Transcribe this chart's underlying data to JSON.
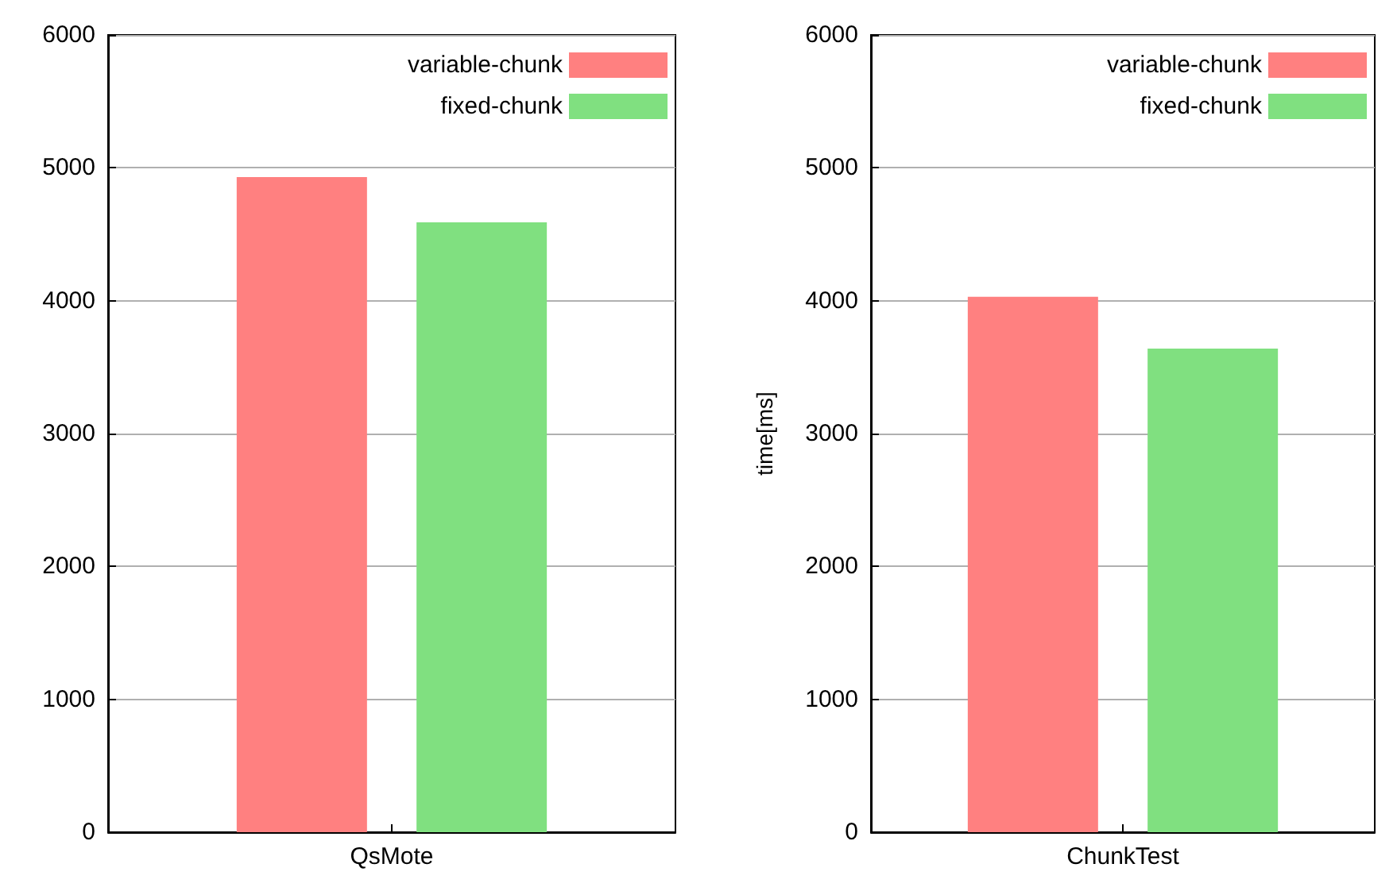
{
  "chart_data": [
    {
      "type": "bar",
      "categories": [
        "QsMote"
      ],
      "series": [
        {
          "name": "variable-chunk",
          "color": "#ff8080",
          "values": [
            4930
          ]
        },
        {
          "name": "fixed-chunk",
          "color": "#80e080",
          "values": [
            4590
          ]
        }
      ],
      "ylim": [
        0,
        6000
      ],
      "yticks": [
        0,
        1000,
        2000,
        3000,
        4000,
        5000,
        6000
      ],
      "grid": "y",
      "legend": "top right"
    },
    {
      "type": "bar",
      "categories": [
        "ChunkTest"
      ],
      "ylabel": "time[ms]",
      "series": [
        {
          "name": "variable-chunk",
          "color": "#ff8080",
          "values": [
            4030
          ]
        },
        {
          "name": "fixed-chunk",
          "color": "#80e080",
          "values": [
            3640
          ]
        }
      ],
      "ylim": [
        0,
        6000
      ],
      "yticks": [
        0,
        1000,
        2000,
        3000,
        4000,
        5000,
        6000
      ],
      "grid": "y",
      "legend": "top right"
    }
  ]
}
